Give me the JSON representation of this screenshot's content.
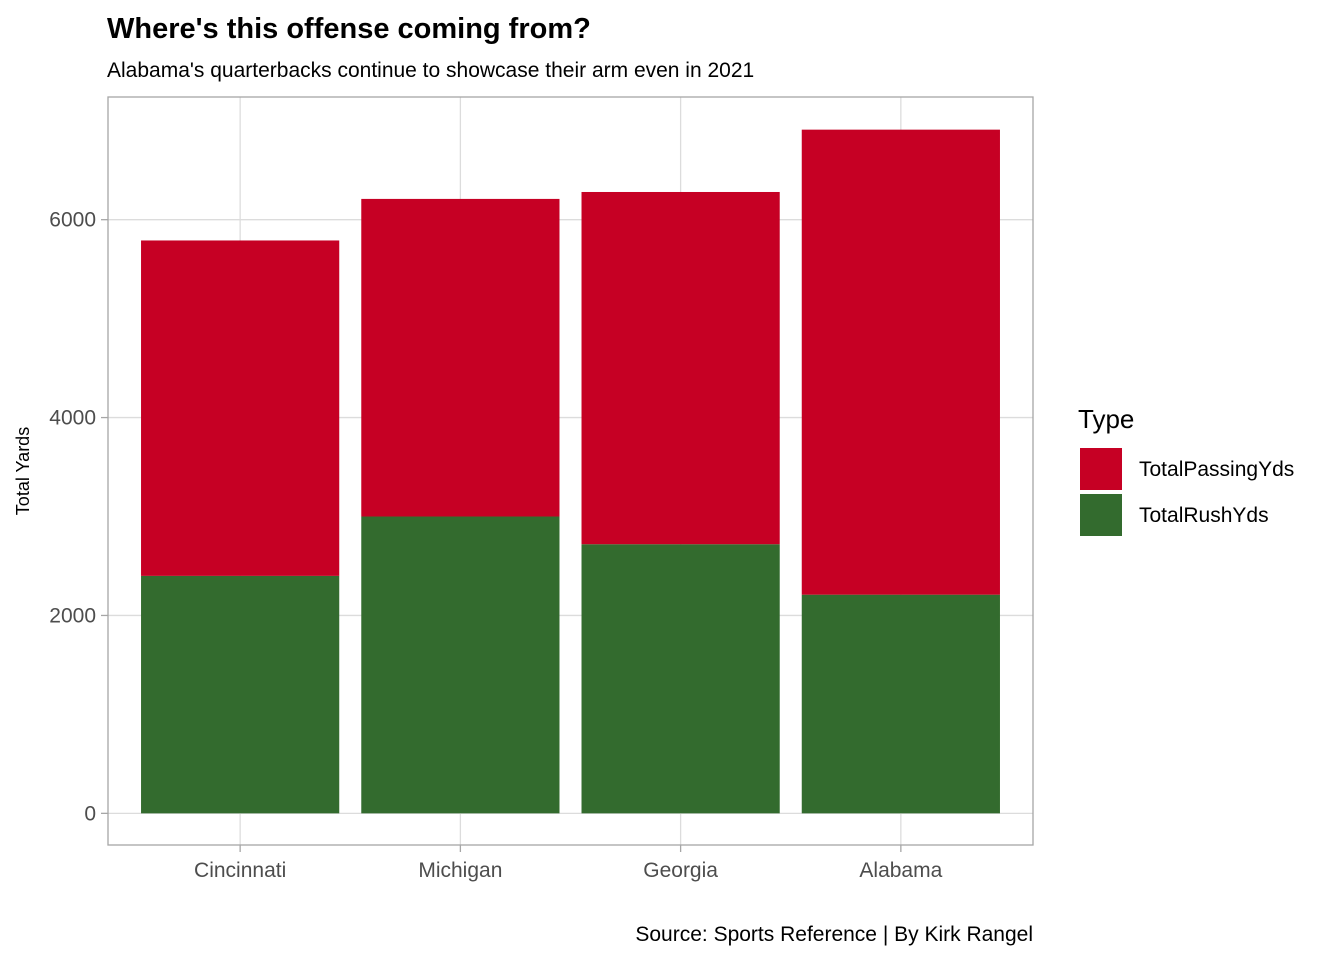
{
  "chart_data": {
    "type": "bar",
    "stacked": true,
    "title": "Where's this offense coming from?",
    "subtitle": "Alabama's quarterbacks continue to showcase their arm even in 2021",
    "caption": "Source: Sports Reference | By Kirk Rangel",
    "xlabel": "",
    "ylabel": "Total Yards",
    "categories": [
      "Cincinnati",
      "Michigan",
      "Georgia",
      "Alabama"
    ],
    "series": [
      {
        "name": "TotalRushYds",
        "color": "#336b2e",
        "values": [
          2400,
          3000,
          2720,
          2210
        ]
      },
      {
        "name": "TotalPassingYds",
        "color": "#c60024",
        "values": [
          3390,
          3210,
          3560,
          4700
        ]
      }
    ],
    "ylim": [
      -320,
      7240
    ],
    "yticks": [
      0,
      2000,
      4000,
      6000
    ],
    "grid": true,
    "legend": {
      "title": "Type",
      "position": "right",
      "entries": [
        {
          "label": "TotalPassingYds",
          "color": "#c60024"
        },
        {
          "label": "TotalRushYds",
          "color": "#336b2e"
        }
      ]
    }
  }
}
